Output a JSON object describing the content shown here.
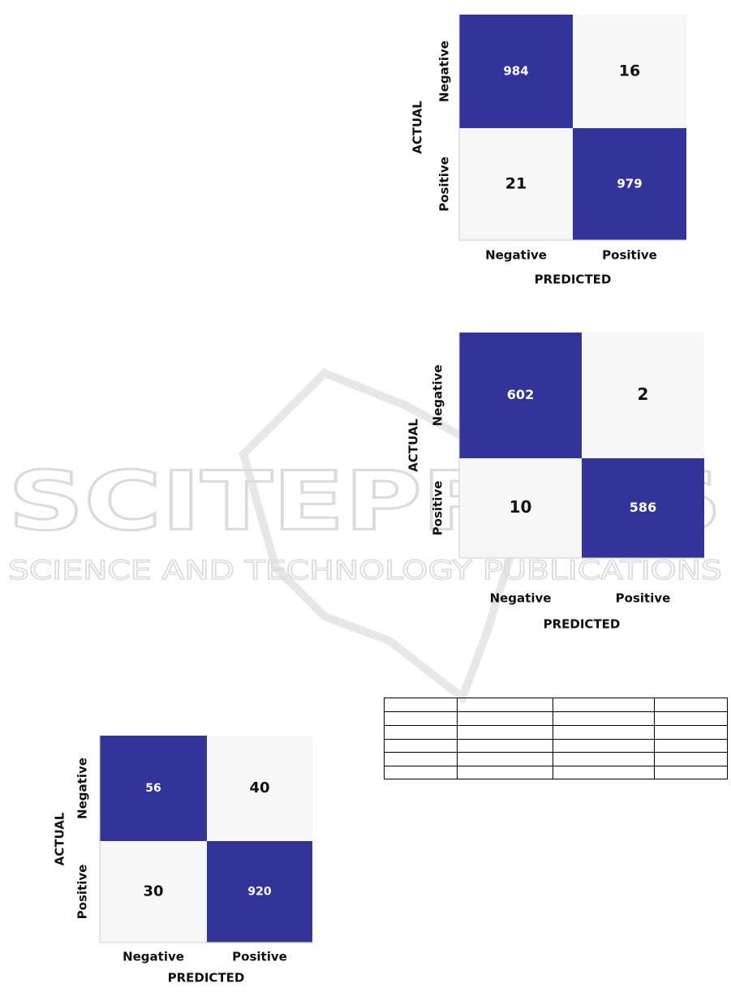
{
  "figures": [
    {
      "cells": [
        [
          984,
          16
        ],
        [
          21,
          979
        ]
      ],
      "row_labels": [
        "Negative",
        "Positive"
      ],
      "column_labels": [
        "Negative",
        "Positive"
      ],
      "y_label": "ACTUAL",
      "x_label": "PREDICTED"
    },
    {
      "cells": [
        [
          602,
          2
        ],
        [
          10,
          586
        ]
      ],
      "row_labels": [
        "Negative",
        "Positive"
      ],
      "column_labels": [
        "Negative",
        "Positive"
      ],
      "y_label": "ACTUAL",
      "x_label": "PREDICTED"
    },
    {
      "cells": [
        [
          56,
          40
        ],
        [
          30,
          920
        ]
      ],
      "row_labels": [
        "Negative",
        "Positive"
      ],
      "column_labels": [
        "Negative",
        "Positive"
      ],
      "y_label": "ACTUAL",
      "x_label": "PREDICTED"
    }
  ],
  "watermark": {
    "title": "SCITEPRESS",
    "subtitle": "SCIENCE AND TECHNOLOGY PUBLICATIONS"
  }
}
